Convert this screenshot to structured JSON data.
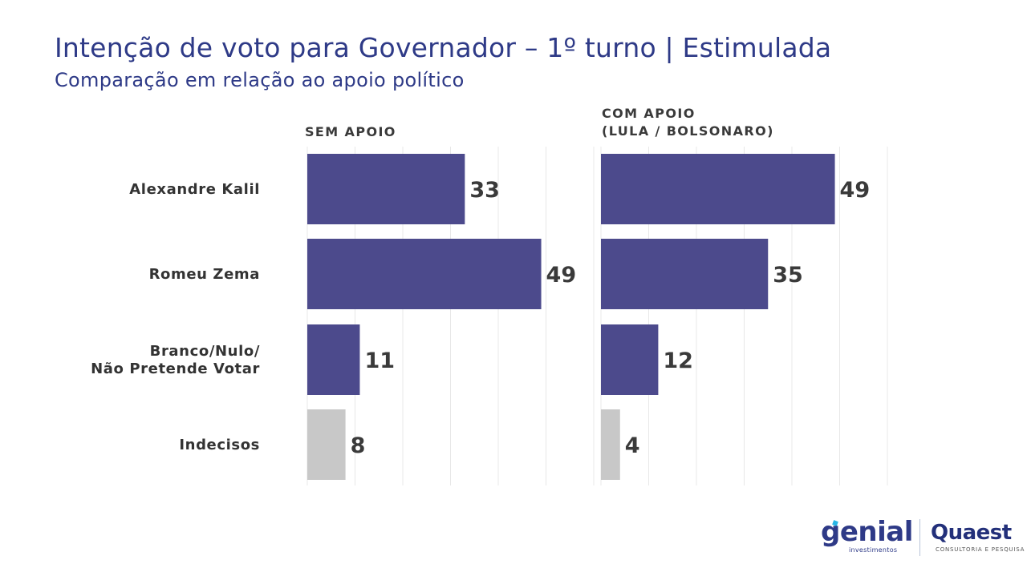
{
  "title": "Intenção de voto para Governador – 1º turno | Estimulada",
  "subtitle": "Comparação em relação ao apoio político",
  "colors": {
    "primary": "#4c4a8c",
    "neutral": "#c8c8c8",
    "title": "#2e3a87"
  },
  "chart_data": {
    "type": "bar",
    "orientation": "horizontal",
    "categories": [
      "Alexandre Kalil",
      "Romeu Zema",
      "Branco/Nulo/\nNão Pretende Votar",
      "Indecisos"
    ],
    "series": [
      {
        "name": "SEM APOIO",
        "values": [
          33,
          49,
          11,
          8
        ]
      },
      {
        "name": "COM APOIO\n(LULA / BOLSONARO)",
        "values": [
          49,
          35,
          12,
          4
        ]
      }
    ],
    "bar_colors": [
      "#4c4a8c",
      "#4c4a8c",
      "#4c4a8c",
      "#c8c8c8"
    ],
    "xlim": [
      0,
      60
    ],
    "grid": true
  },
  "logos": {
    "genial": {
      "name": "genial",
      "tagline": "investimentos"
    },
    "quaest": {
      "name": "Quaest",
      "tagline": "CONSULTORIA E PESQUISA"
    }
  }
}
